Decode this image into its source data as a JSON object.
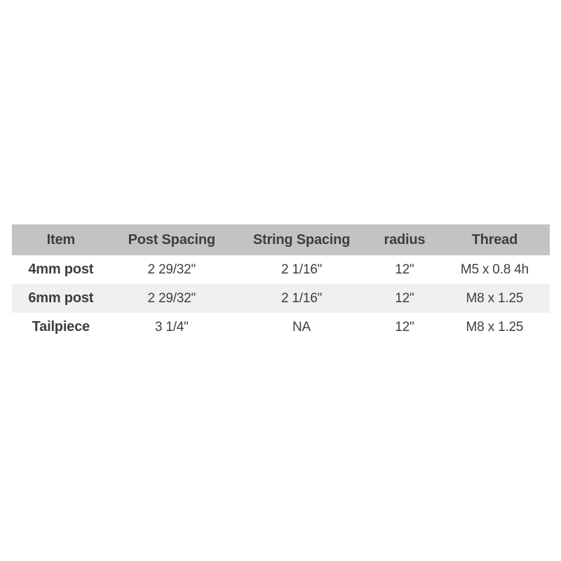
{
  "chart_data": {
    "type": "table",
    "columns": [
      {
        "key": "item",
        "label": "Item"
      },
      {
        "key": "post_spacing",
        "label": "Post Spacing"
      },
      {
        "key": "string_spacing",
        "label": "String Spacing"
      },
      {
        "key": "radius",
        "label": "radius"
      },
      {
        "key": "thread",
        "label": "Thread"
      }
    ],
    "rows": [
      {
        "item": "4mm post",
        "post_spacing": "2 29/32\"",
        "string_spacing": "2 1/16\"",
        "radius": "12\"",
        "thread": "M5 x 0.8 4h"
      },
      {
        "item": "6mm post",
        "post_spacing": "2 29/32\"",
        "string_spacing": "2 1/16\"",
        "radius": "12\"",
        "thread": "M8 x 1.25"
      },
      {
        "item": "Tailpiece",
        "post_spacing": "3 1/4\"",
        "string_spacing": "NA",
        "radius": "12\"",
        "thread": "M8 x 1.25"
      }
    ],
    "layout": {
      "header_style": "solid gray band, bold text",
      "zebra_striping": "second data row shaded light gray",
      "alignment": "all columns center-aligned",
      "borders": "none"
    }
  },
  "colors": {
    "header_bg": "#c3c3c3",
    "row_alt_bg": "#f0f0f0",
    "text": "#3e3e3e",
    "page_bg": "#ffffff"
  }
}
